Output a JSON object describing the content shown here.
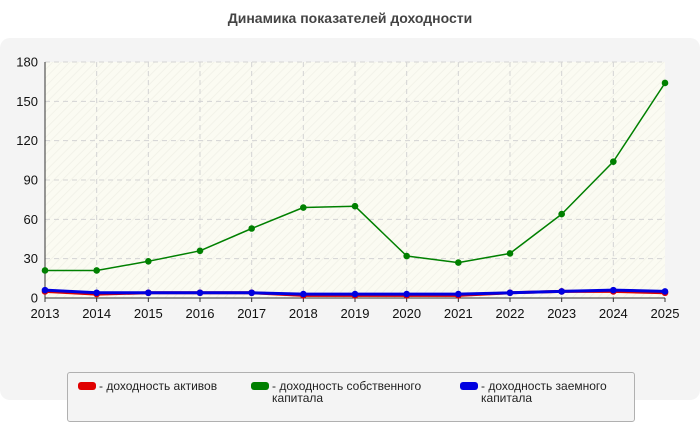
{
  "title": "Динамика показателей доходности",
  "legend": [
    {
      "label": "- доходность активов",
      "color": "#e00000"
    },
    {
      "label": "- доходность собственного капитала",
      "color": "#008000"
    },
    {
      "label": "- доходность заемного капитала",
      "color": "#0000e0"
    }
  ],
  "chart_data": {
    "type": "line",
    "title": "Динамика показателей доходности",
    "xlabel": "",
    "ylabel": "",
    "x": [
      "2013",
      "2014",
      "2015",
      "2016",
      "2017",
      "2018",
      "2019",
      "2020",
      "2021",
      "2022",
      "2023",
      "2024",
      "2025"
    ],
    "ylim": [
      0,
      180
    ],
    "yticks": [
      0,
      30,
      60,
      90,
      120,
      150,
      180
    ],
    "grid": true,
    "legend_position": "bottom",
    "series": [
      {
        "name": "- доходность активов",
        "color": "#e00000",
        "values": [
          5,
          3,
          4,
          4,
          4,
          2,
          2,
          2,
          2,
          4,
          5,
          5,
          4
        ]
      },
      {
        "name": "- доходность собственного капитала",
        "color": "#008000",
        "values": [
          21,
          21,
          28,
          36,
          53,
          69,
          70,
          32,
          27,
          34,
          64,
          104,
          164
        ]
      },
      {
        "name": "- доходность заемного капитала",
        "color": "#0000e0",
        "values": [
          6,
          4,
          4,
          4,
          4,
          3,
          3,
          3,
          3,
          4,
          5,
          6,
          5
        ]
      }
    ]
  }
}
